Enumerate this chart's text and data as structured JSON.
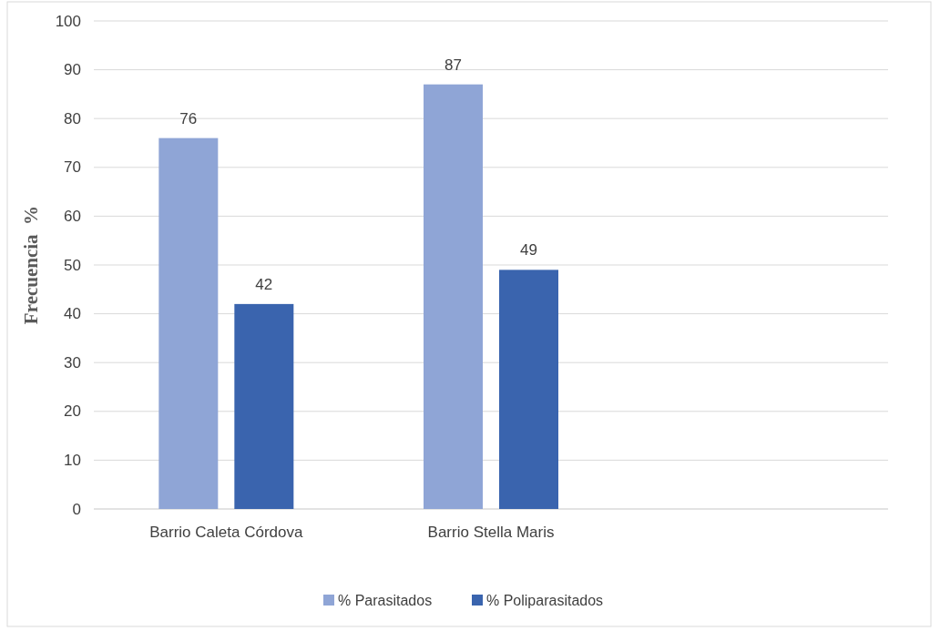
{
  "chart_data": {
    "type": "bar",
    "ylabel": "Frecuencia  %",
    "categories": [
      "Barrio Caleta Córdova",
      "Barrio Stella Maris",
      null
    ],
    "series": [
      {
        "name": "% Parasitados",
        "color": "#8fa5d6",
        "values": [
          76,
          87,
          null
        ]
      },
      {
        "name": "% Poliparasitados",
        "color": "#3a64ae",
        "values": [
          42,
          49,
          null
        ]
      }
    ],
    "ylim": [
      0,
      100
    ],
    "yticks": [
      0,
      10,
      20,
      30,
      40,
      50,
      60,
      70,
      80,
      90,
      100
    ],
    "grid": "y",
    "legend": "bottom",
    "data_labels": true
  }
}
